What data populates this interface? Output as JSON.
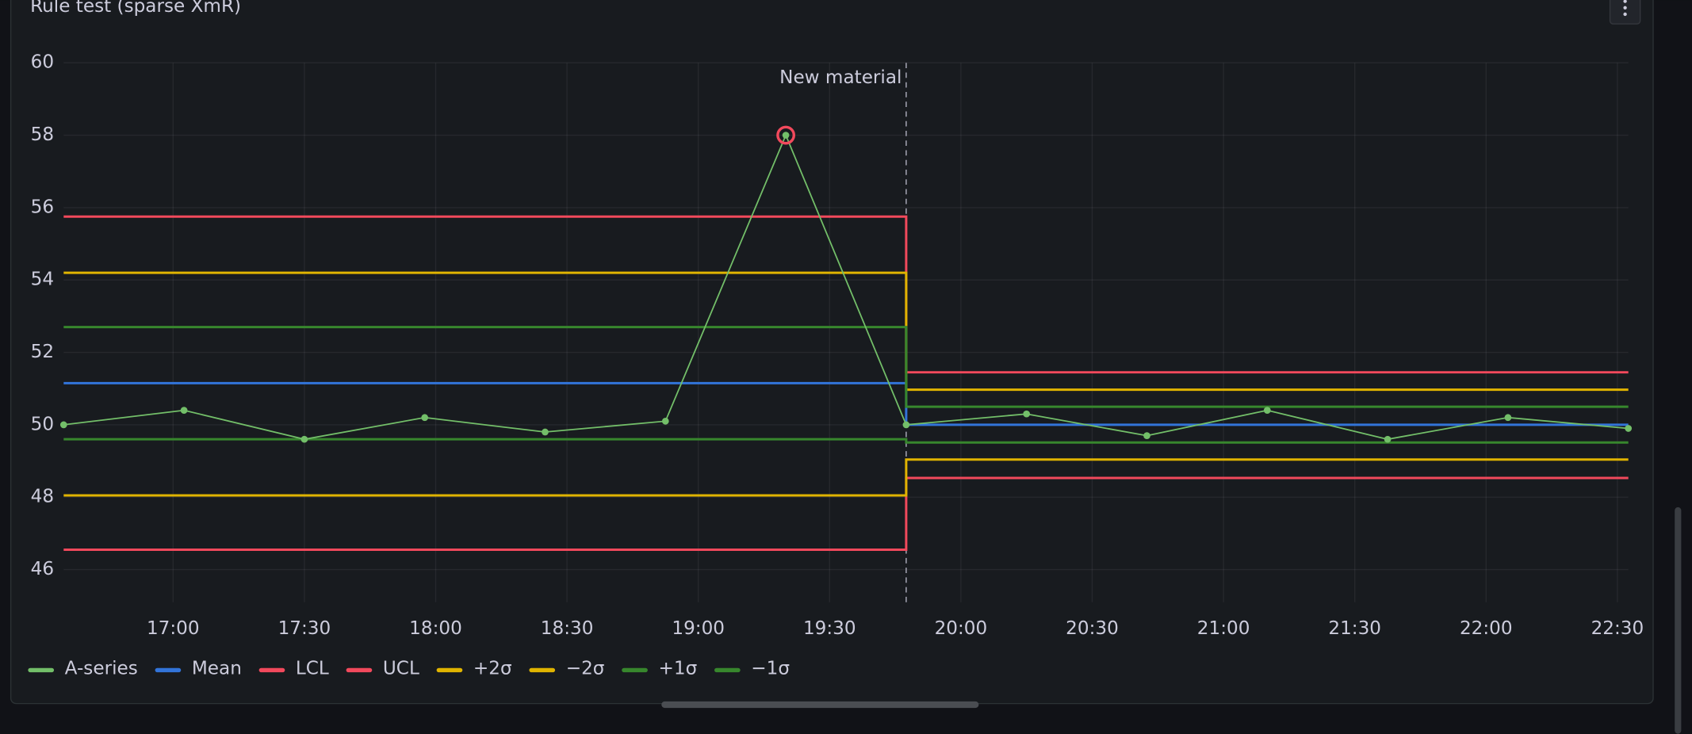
{
  "chart_data": {
    "type": "line",
    "title": "Rule test (sparse XmR)",
    "x": [
      "16:35:00",
      "17:02:30",
      "17:30:00",
      "17:57:30",
      "18:25:00",
      "18:52:30",
      "19:20:00",
      "19:47:30",
      "20:15:00",
      "20:42:30",
      "21:10:00",
      "21:37:30",
      "22:05:00",
      "22:32:30"
    ],
    "xlim": [
      "16:35:00",
      "22:32:30"
    ],
    "xticks": [
      "17:00",
      "17:30",
      "18:00",
      "18:30",
      "19:00",
      "19:30",
      "20:00",
      "20:30",
      "21:00",
      "21:30",
      "22:00",
      "22:30"
    ],
    "ylim": [
      45.1,
      60
    ],
    "yticks": [
      46,
      48,
      50,
      52,
      54,
      56,
      58,
      60
    ],
    "grid": true,
    "legend": "bottom",
    "annotations": [
      {
        "x": "19:47:30",
        "text": "New material"
      }
    ],
    "series": [
      {
        "name": "A-series",
        "color": "#73bf69",
        "interpolation": "linear",
        "points": true,
        "flagged_indices": [
          6
        ],
        "values": [
          50.0,
          50.4,
          49.6,
          50.2,
          49.8,
          50.1,
          58.0,
          50.0,
          50.3,
          49.7,
          50.4,
          49.6,
          50.2,
          49.9
        ]
      },
      {
        "name": "Mean",
        "color": "#3274d9",
        "interpolation": "step-after",
        "values": [
          51.15,
          51.15,
          51.15,
          51.15,
          51.15,
          51.15,
          51.15,
          50.0,
          50.0,
          50.0,
          50.0,
          50.0,
          50.0,
          50.0
        ]
      },
      {
        "name": "LCL",
        "color": "#f2495c",
        "interpolation": "step-after",
        "values": [
          46.55,
          46.55,
          46.55,
          46.55,
          46.55,
          46.55,
          46.55,
          48.53,
          48.53,
          48.53,
          48.53,
          48.53,
          48.53,
          48.53
        ]
      },
      {
        "name": "UCL",
        "color": "#f2495c",
        "interpolation": "step-after",
        "values": [
          55.75,
          55.75,
          55.75,
          55.75,
          55.75,
          55.75,
          55.75,
          51.45,
          51.45,
          51.45,
          51.45,
          51.45,
          51.45,
          51.45
        ]
      },
      {
        "name": "+2σ",
        "color": "#e0b400",
        "interpolation": "step-after",
        "values": [
          54.2,
          54.2,
          54.2,
          54.2,
          54.2,
          54.2,
          54.2,
          50.97,
          50.97,
          50.97,
          50.97,
          50.97,
          50.97,
          50.97
        ]
      },
      {
        "name": "−2σ",
        "color": "#e0b400",
        "interpolation": "step-after",
        "values": [
          48.05,
          48.05,
          48.05,
          48.05,
          48.05,
          48.05,
          48.05,
          49.04,
          49.04,
          49.04,
          49.04,
          49.04,
          49.04,
          49.04
        ]
      },
      {
        "name": "+1σ",
        "color": "#37872d",
        "interpolation": "step-after",
        "values": [
          52.7,
          52.7,
          52.7,
          52.7,
          52.7,
          52.7,
          52.7,
          50.5,
          50.5,
          50.5,
          50.5,
          50.5,
          50.5,
          50.5
        ]
      },
      {
        "name": "−1σ",
        "color": "#37872d",
        "interpolation": "step-after",
        "values": [
          49.6,
          49.6,
          49.6,
          49.6,
          49.6,
          49.6,
          49.6,
          49.51,
          49.51,
          49.51,
          49.51,
          49.51,
          49.51,
          49.51
        ]
      }
    ]
  }
}
